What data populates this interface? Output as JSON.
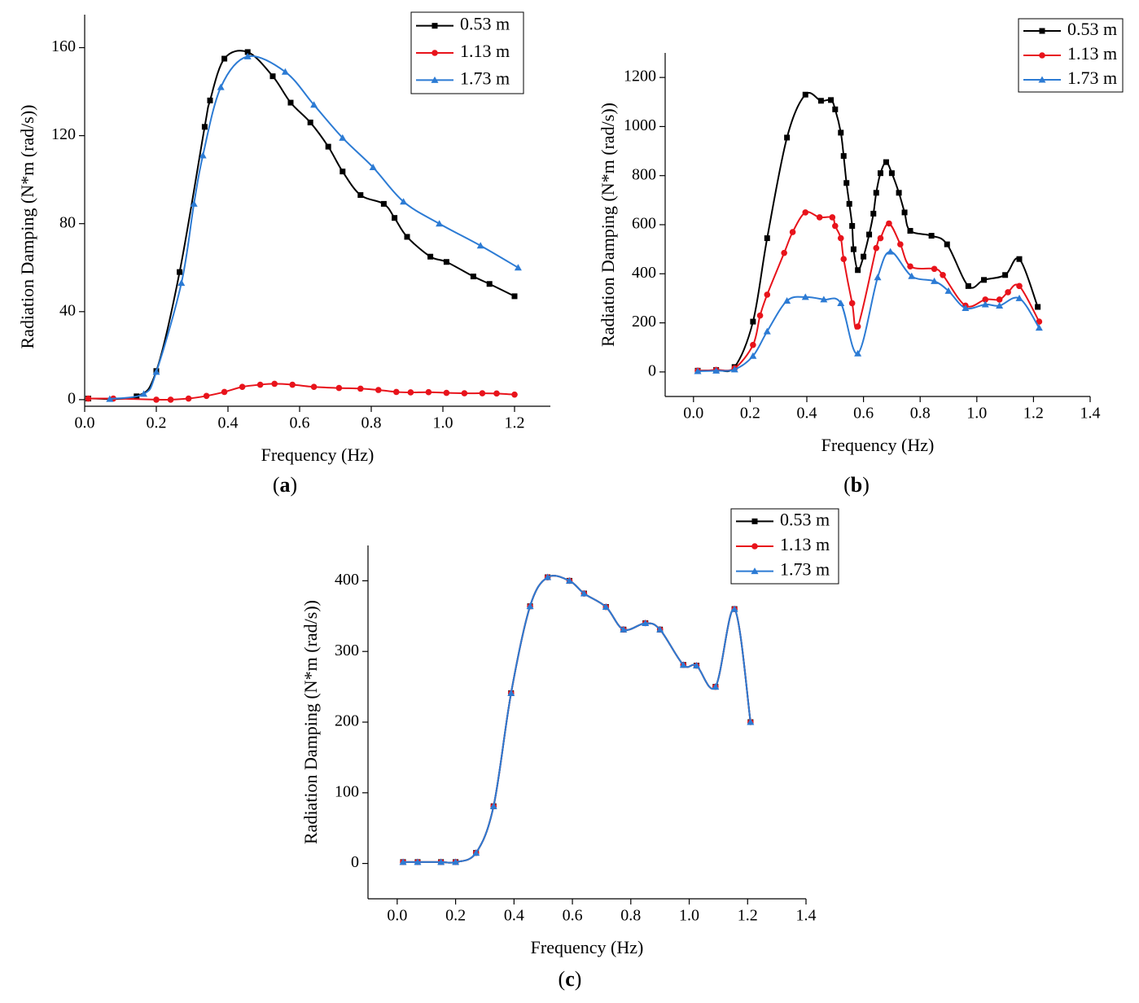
{
  "chart_data": [
    {
      "type": "line",
      "label": "(a)",
      "x_label": "Frequency (Hz)",
      "y_label": "Radiation Damping (N*m (rad/s))",
      "xlim": [
        0,
        1.3
      ],
      "ylim": [
        -3,
        175
      ],
      "xticks": [
        {
          "value": 0,
          "label": "0.0"
        },
        0.2,
        0.4,
        0.6,
        0.8,
        {
          "value": 1,
          "label": "1.0"
        },
        1.2
      ],
      "yticks": [
        0,
        40,
        80,
        120,
        160
      ],
      "grid": false,
      "smooth": true,
      "series": [
        {
          "name": "0.53 m",
          "color": "#000000",
          "marker": "square",
          "x": [
            0.01,
            0.145,
            0.2,
            0.265,
            0.335,
            0.35,
            0.39,
            0.455,
            0.525,
            0.575,
            0.63,
            0.68,
            0.72,
            0.77,
            0.835,
            0.865,
            0.9,
            0.965,
            1.01,
            1.085,
            1.13,
            1.2
          ],
          "values": [
            0.5,
            1.5,
            13,
            58,
            124,
            136,
            155,
            158,
            147,
            135,
            126,
            115,
            103.7,
            93,
            89,
            82.6,
            74,
            65,
            62.6,
            56,
            52.6,
            47
          ]
        },
        {
          "name": "1.13 m",
          "color": "#e8131b",
          "marker": "circle",
          "x": [
            0.01,
            0.08,
            0.2,
            0.24,
            0.29,
            0.34,
            0.39,
            0.44,
            0.49,
            0.53,
            0.58,
            0.64,
            0.71,
            0.77,
            0.82,
            0.87,
            0.91,
            0.96,
            1.01,
            1.06,
            1.11,
            1.15,
            1.2
          ],
          "values": [
            0.5,
            0.5,
            0,
            0,
            0.5,
            1.7,
            3.5,
            5.8,
            6.8,
            7.2,
            6.8,
            5.8,
            5.3,
            5,
            4.4,
            3.5,
            3.3,
            3.4,
            3.1,
            2.9,
            2.9,
            2.8,
            2.3
          ]
        },
        {
          "name": "1.73 m",
          "color": "#2c7bd4",
          "marker": "triangle",
          "x": [
            0.07,
            0.165,
            0.2,
            0.27,
            0.305,
            0.33,
            0.38,
            0.455,
            0.56,
            0.64,
            0.72,
            0.805,
            0.89,
            0.99,
            1.105,
            1.21
          ],
          "values": [
            0.3,
            2.6,
            12.6,
            53,
            89,
            111,
            142,
            156,
            149,
            134,
            119,
            105.6,
            90,
            80,
            70,
            60
          ]
        }
      ]
    },
    {
      "type": "line",
      "label": "(b)",
      "x_label": "Frequency (Hz)",
      "y_label": "Radiation Damping (N*m (rad/s))",
      "xlim": [
        -0.1,
        1.4
      ],
      "ylim": [
        -100,
        1300
      ],
      "xticks": [
        {
          "value": 0,
          "label": "0.0"
        },
        0.2,
        0.4,
        0.6,
        0.8,
        {
          "value": 1,
          "label": "1.0"
        },
        1.2,
        1.4
      ],
      "yticks": [
        0,
        200,
        400,
        600,
        800,
        1000,
        1200
      ],
      "grid": false,
      "smooth": true,
      "series": [
        {
          "name": "0.53 m",
          "color": "#000000",
          "marker": "square",
          "x": [
            0.015,
            0.08,
            0.145,
            0.21,
            0.26,
            0.33,
            0.395,
            0.45,
            0.485,
            0.5,
            0.52,
            0.53,
            0.54,
            0.55,
            0.56,
            0.565,
            0.58,
            0.6,
            0.62,
            0.635,
            0.645,
            0.66,
            0.68,
            0.7,
            0.725,
            0.745,
            0.765,
            0.84,
            0.895,
            0.97,
            1.025,
            1.1,
            1.15,
            1.215
          ],
          "values": [
            5,
            8,
            20,
            205,
            545,
            955,
            1130,
            1105,
            1108,
            1070,
            975,
            880,
            770,
            685,
            595,
            500,
            415,
            470,
            560,
            645,
            730,
            810,
            855,
            810,
            730,
            650,
            575,
            555,
            520,
            350,
            375,
            395,
            460,
            265
          ]
        },
        {
          "name": "1.13 m",
          "color": "#e8131b",
          "marker": "circle",
          "x": [
            0.015,
            0.08,
            0.145,
            0.21,
            0.235,
            0.26,
            0.32,
            0.35,
            0.395,
            0.445,
            0.49,
            0.5,
            0.52,
            0.53,
            0.56,
            0.58,
            0.645,
            0.66,
            0.69,
            0.73,
            0.765,
            0.85,
            0.88,
            0.96,
            1.03,
            1.08,
            1.11,
            1.15,
            1.22
          ],
          "values": [
            5,
            8,
            15,
            110,
            230,
            315,
            485,
            570,
            650,
            630,
            630,
            595,
            545,
            460,
            280,
            185,
            505,
            545,
            605,
            520,
            430,
            420,
            395,
            270,
            295,
            295,
            325,
            350,
            205
          ]
        },
        {
          "name": "1.73 m",
          "color": "#2c7bd4",
          "marker": "triangle",
          "x": [
            0.015,
            0.08,
            0.145,
            0.21,
            0.26,
            0.33,
            0.395,
            0.46,
            0.52,
            0.58,
            0.65,
            0.695,
            0.77,
            0.85,
            0.9,
            0.96,
            1.03,
            1.08,
            1.15,
            1.22
          ],
          "values": [
            3,
            5,
            10,
            65,
            165,
            290,
            305,
            295,
            280,
            75,
            385,
            490,
            390,
            370,
            330,
            260,
            275,
            270,
            300,
            180
          ]
        }
      ]
    },
    {
      "type": "line",
      "label": "(c)",
      "x_label": "Frequency (Hz)",
      "y_label": "Radiation Damping (N*m (rad/s))",
      "xlim": [
        -0.1,
        1.4
      ],
      "ylim": [
        -50,
        450
      ],
      "xticks": [
        {
          "value": 0,
          "label": "0.0"
        },
        0.2,
        0.4,
        0.6,
        0.8,
        {
          "value": 1,
          "label": "1.0"
        },
        1.2,
        1.4
      ],
      "yticks": [
        0,
        100,
        200,
        300,
        400
      ],
      "grid": false,
      "smooth": true,
      "series": [
        {
          "name": "0.53 m",
          "color": "#000000",
          "marker": "square",
          "x": [
            0.02,
            0.07,
            0.15,
            0.2,
            0.27,
            0.33,
            0.39,
            0.455,
            0.515,
            0.59,
            0.64,
            0.715,
            0.775,
            0.85,
            0.9,
            0.98,
            1.025,
            1.09,
            1.155,
            1.21
          ],
          "values": [
            2,
            2,
            2,
            2,
            15,
            81,
            241,
            364,
            405,
            400,
            382,
            363,
            331,
            340,
            331,
            281,
            280,
            250,
            360,
            200
          ]
        },
        {
          "name": "1.13 m",
          "color": "#e8131b",
          "marker": "circle",
          "x": [
            0.02,
            0.07,
            0.15,
            0.2,
            0.27,
            0.33,
            0.39,
            0.455,
            0.515,
            0.59,
            0.64,
            0.715,
            0.775,
            0.85,
            0.9,
            0.98,
            1.025,
            1.09,
            1.155,
            1.21
          ],
          "values": [
            2,
            2,
            2,
            2,
            15,
            81,
            241,
            364,
            405,
            400,
            382,
            363,
            331,
            340,
            331,
            281,
            280,
            250,
            360,
            200
          ]
        },
        {
          "name": "1.73 m",
          "color": "#2c7bd4",
          "marker": "triangle",
          "x": [
            0.02,
            0.07,
            0.15,
            0.2,
            0.27,
            0.33,
            0.39,
            0.455,
            0.515,
            0.59,
            0.64,
            0.715,
            0.775,
            0.85,
            0.9,
            0.98,
            1.025,
            1.09,
            1.155,
            1.21
          ],
          "values": [
            2,
            2,
            2,
            2,
            15,
            81,
            241,
            364,
            405,
            400,
            382,
            363,
            331,
            340,
            331,
            281,
            280,
            250,
            360,
            200
          ]
        }
      ]
    }
  ]
}
